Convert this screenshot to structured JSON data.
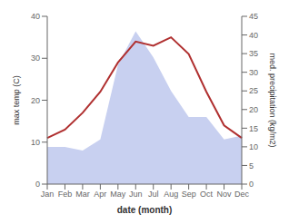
{
  "chart_data": {
    "type": "line",
    "xlabel": "date (month)",
    "ylabel": "max temp (C)",
    "y2label": "med. precipitation (kg/m2)",
    "categories": [
      "Jan",
      "Feb",
      "Mar",
      "Apr",
      "May",
      "Jun",
      "Jul",
      "Aug",
      "Sep",
      "Oct",
      "Nov",
      "Dec"
    ],
    "series": [
      {
        "type": "area",
        "axis": "y2",
        "color": "#c8d0f0",
        "values": [
          10,
          10,
          9,
          12,
          32,
          41,
          34,
          25,
          18,
          18,
          12,
          13
        ]
      },
      {
        "type": "line",
        "color": "#b03030",
        "values": [
          11,
          13,
          17,
          22,
          29,
          34,
          33,
          35,
          31,
          22,
          14,
          11
        ]
      }
    ],
    "ylim": [
      0,
      40
    ],
    "yticks": [
      0,
      10,
      20,
      30,
      40
    ],
    "y2lim": [
      0,
      45
    ],
    "y2ticks": [
      0,
      5,
      10,
      15,
      20,
      25,
      30,
      35,
      40,
      45
    ],
    "grid": false
  }
}
